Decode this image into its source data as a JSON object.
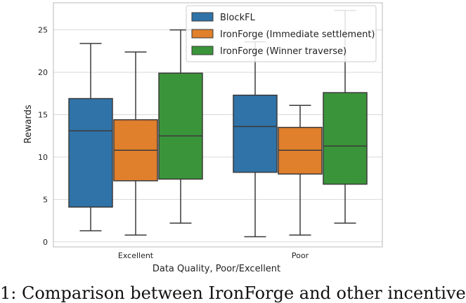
{
  "chart_data": {
    "type": "box",
    "xlabel": "Data Quality, Poor/Excellent",
    "ylabel": "Rewards",
    "ylim": [
      -0.6,
      28.2
    ],
    "yticks": [
      0,
      5,
      10,
      15,
      20,
      25
    ],
    "grid": "y",
    "legend_position": "top-right",
    "categories": [
      "Excellent",
      "Poor"
    ],
    "series": [
      {
        "name": "BlockFL",
        "color": "#2f73a8",
        "boxes": [
          {
            "whisker_low": 1.3,
            "q1": 4.1,
            "median": 13.1,
            "q3": 16.9,
            "whisker_high": 23.4
          },
          {
            "whisker_low": 0.6,
            "q1": 8.2,
            "median": 13.6,
            "q3": 17.3,
            "whisker_high": 23.6
          }
        ]
      },
      {
        "name": "IronForge (Immediate settlement)",
        "color": "#e07f2c",
        "boxes": [
          {
            "whisker_low": 0.8,
            "q1": 7.2,
            "median": 10.8,
            "q3": 14.4,
            "whisker_high": 22.4
          },
          {
            "whisker_low": 0.8,
            "q1": 8.0,
            "median": 10.8,
            "q3": 13.5,
            "whisker_high": 16.1
          }
        ]
      },
      {
        "name": "IronForge (Winner traverse)",
        "color": "#3a953a",
        "boxes": [
          {
            "whisker_low": 2.2,
            "q1": 7.4,
            "median": 12.5,
            "q3": 19.9,
            "whisker_high": 25.0
          },
          {
            "whisker_low": 2.2,
            "q1": 6.8,
            "median": 11.3,
            "q3": 17.6,
            "whisker_high": 27.3
          }
        ]
      }
    ]
  },
  "caption": "1: Comparison between IronForge and other incentive"
}
